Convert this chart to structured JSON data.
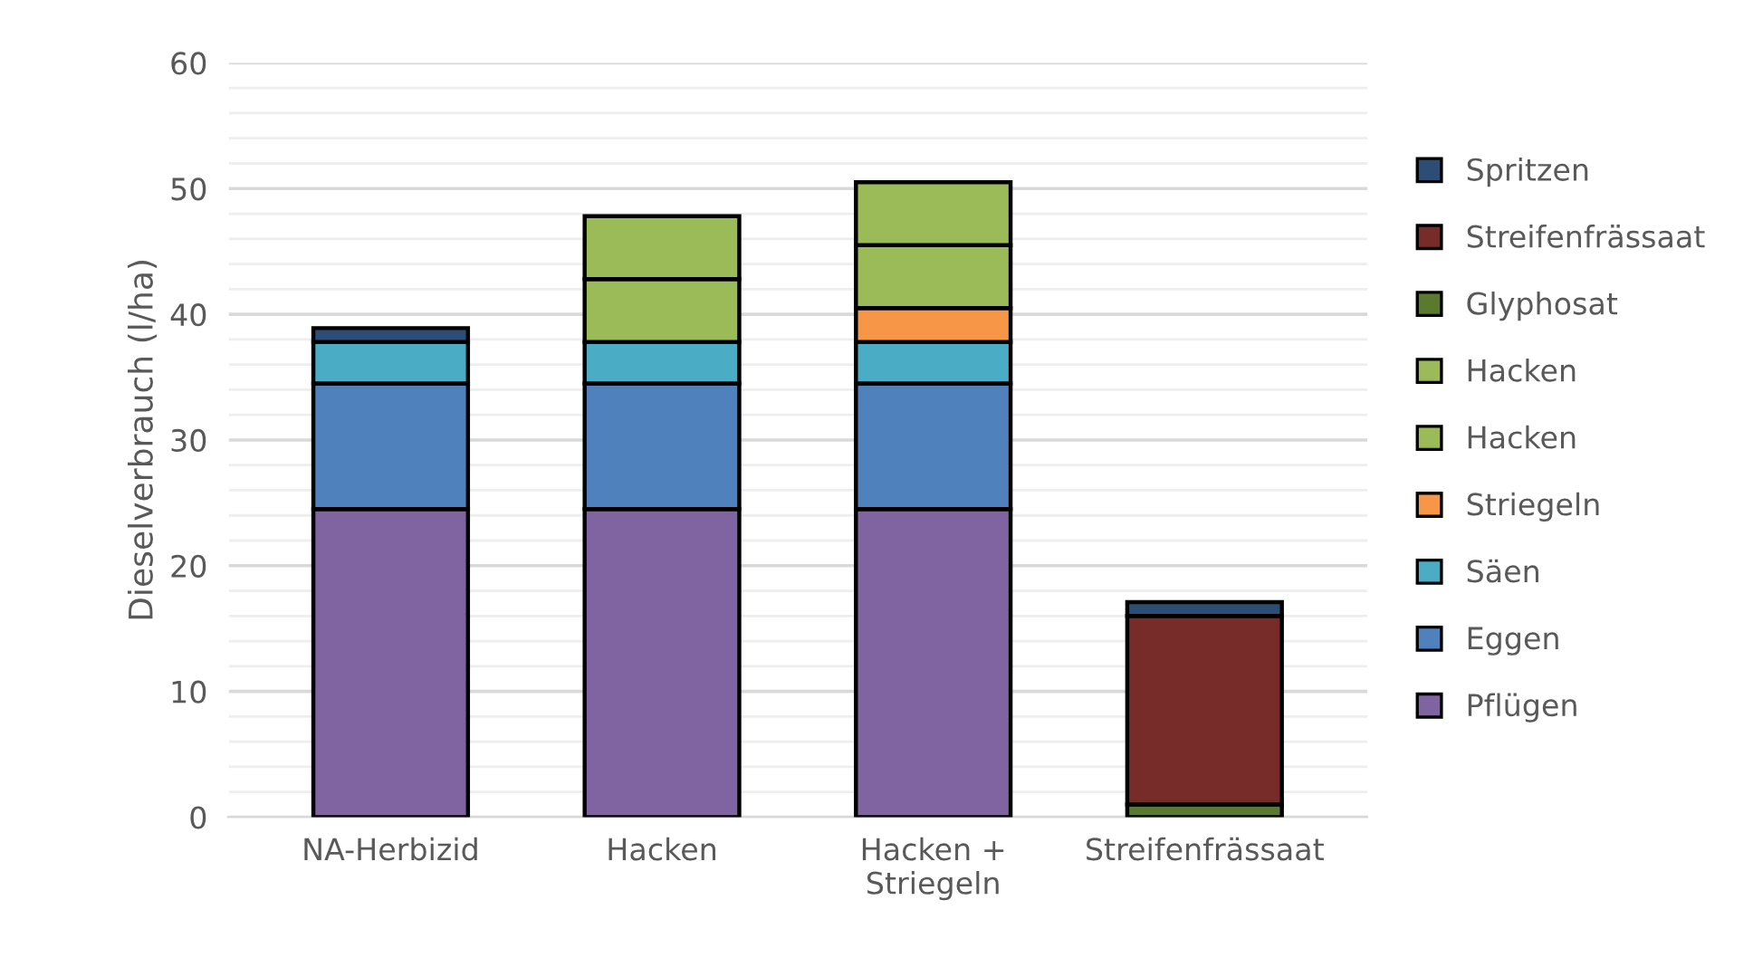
{
  "chart_data": {
    "type": "bar",
    "stacked": true,
    "ylabel": "Dieselverbrauch (l/ha)",
    "categories": [
      "NA-Herbizid",
      "Hacken",
      "Hacken +\nStriegeln",
      "Streifenfrässaat"
    ],
    "series": [
      {
        "name": "Pflügen",
        "color": "#8064a2",
        "values": [
          24.5,
          24.5,
          24.5,
          null
        ]
      },
      {
        "name": "Eggen",
        "color": "#4f81bd",
        "values": [
          10,
          10,
          10,
          null
        ]
      },
      {
        "name": "Säen",
        "color": "#4bacc6",
        "values": [
          3.3,
          3.3,
          3.3,
          null
        ]
      },
      {
        "name": "Striegeln",
        "color": "#f79646",
        "values": [
          null,
          null,
          2.7,
          null
        ]
      },
      {
        "name": "Hacken",
        "color": "#9bbb59",
        "values": [
          null,
          5,
          5,
          null
        ]
      },
      {
        "name": "Hacken",
        "color": "#9bbb59",
        "values": [
          null,
          5,
          5,
          null
        ]
      },
      {
        "name": "Glyphosat",
        "color": "#5a7a2e",
        "values": [
          null,
          null,
          null,
          1
        ]
      },
      {
        "name": "Streifenfrässaat",
        "color": "#772c2a",
        "values": [
          null,
          null,
          null,
          15
        ]
      },
      {
        "name": "Spritzen",
        "color": "#2c4d75",
        "values": [
          1.1,
          null,
          null,
          1.1
        ]
      }
    ],
    "ylim": [
      0,
      60
    ],
    "yticks": [
      0,
      {
        "value": 2,
        "label": null
      },
      {
        "value": 4,
        "label": null
      },
      {
        "value": 6,
        "label": null
      },
      {
        "value": 8,
        "label": null
      },
      10,
      {
        "value": 12,
        "label": null
      },
      {
        "value": 14,
        "label": null
      },
      {
        "value": 16,
        "label": null
      },
      {
        "value": 18,
        "label": null
      },
      20,
      {
        "value": 22,
        "label": null
      },
      {
        "value": 24,
        "label": null
      },
      {
        "value": 26,
        "label": null
      },
      {
        "value": 28,
        "label": null
      },
      30,
      {
        "value": 32,
        "label": null
      },
      {
        "value": 34,
        "label": null
      },
      {
        "value": 36,
        "label": null
      },
      {
        "value": 38,
        "label": null
      },
      40,
      {
        "value": 42,
        "label": null
      },
      {
        "value": 44,
        "label": null
      },
      {
        "value": 46,
        "label": null
      },
      {
        "value": 48,
        "label": null
      },
      50,
      {
        "value": 52,
        "label": null
      },
      {
        "value": 54,
        "label": null
      },
      {
        "value": 56,
        "label": null
      },
      {
        "value": 58,
        "label": null
      },
      60
    ],
    "grid": "y",
    "legend": "right"
  }
}
